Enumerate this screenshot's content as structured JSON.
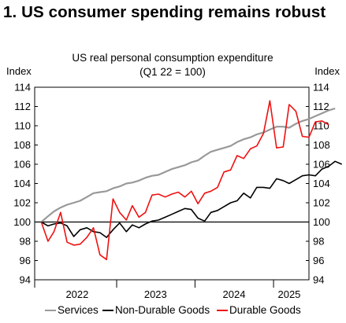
{
  "headline": "1. US consumer spending remains robust",
  "chart_data": {
    "type": "line",
    "title": "US real personal consumption expenditure",
    "subtitle": "(Q1 22 = 100)",
    "ylabel_left": "Index",
    "ylabel_right": "Index",
    "ylim": [
      94,
      114
    ],
    "yticks": [
      94,
      96,
      98,
      100,
      102,
      104,
      106,
      108,
      110,
      112,
      114
    ],
    "xlim": [
      "2021-12-15",
      "2025-06-15"
    ],
    "xticks": [
      {
        "label": "2022",
        "date": "2022-07-01"
      },
      {
        "label": "2023",
        "date": "2023-07-01"
      },
      {
        "label": "2024",
        "date": "2024-07-01"
      },
      {
        "label": "2025",
        "date": "2025-03-15"
      }
    ],
    "year_boundaries": [
      "2021-12-15",
      "2023-01-01",
      "2024-01-01",
      "2025-01-01"
    ],
    "reference_line": 100,
    "grid": false,
    "legend_position": "bottom",
    "start_date": "2022-01",
    "series": [
      {
        "name": "Services",
        "color": "#999999",
        "values": [
          100.0,
          100.6,
          101.1,
          101.5,
          101.8,
          102.0,
          102.2,
          102.6,
          103.0,
          103.1,
          103.2,
          103.5,
          103.7,
          104.0,
          104.1,
          104.3,
          104.6,
          104.8,
          104.9,
          105.2,
          105.5,
          105.7,
          105.9,
          106.2,
          106.4,
          106.9,
          107.3,
          107.5,
          107.7,
          107.9,
          108.3,
          108.6,
          108.8,
          109.1,
          109.3,
          109.6,
          109.9,
          109.9,
          109.8,
          110.2,
          110.5,
          110.7,
          111.0,
          111.3,
          111.6,
          111.8
        ]
      },
      {
        "name": "Non-Durable Goods",
        "color": "#000000",
        "values": [
          100.0,
          99.6,
          99.8,
          99.9,
          99.6,
          98.5,
          99.2,
          99.4,
          99.0,
          98.9,
          98.4,
          99.2,
          99.9,
          99.0,
          99.7,
          99.4,
          99.8,
          100.1,
          100.2,
          100.5,
          100.8,
          101.1,
          101.4,
          101.3,
          100.4,
          100.1,
          101.0,
          101.2,
          101.6,
          102.0,
          102.2,
          103.0,
          102.5,
          103.6,
          103.6,
          103.5,
          104.5,
          104.3,
          104.0,
          104.4,
          104.8,
          104.9,
          104.8,
          105.5,
          105.8,
          106.3,
          106.0
        ]
      },
      {
        "name": "Durable Goods",
        "color": "#ee1111",
        "values": [
          100.0,
          98.0,
          99.0,
          101.0,
          97.9,
          97.6,
          97.7,
          98.4,
          99.4,
          96.6,
          96.1,
          102.4,
          101.0,
          100.2,
          101.7,
          100.5,
          101.0,
          102.8,
          102.9,
          102.6,
          102.9,
          103.1,
          102.6,
          103.2,
          101.9,
          103.0,
          103.2,
          103.6,
          105.2,
          105.4,
          106.9,
          106.6,
          107.6,
          107.9,
          109.2,
          112.6,
          107.7,
          107.8,
          112.2,
          111.5,
          108.9,
          108.8,
          110.4,
          110.5,
          110.1
        ]
      }
    ]
  }
}
